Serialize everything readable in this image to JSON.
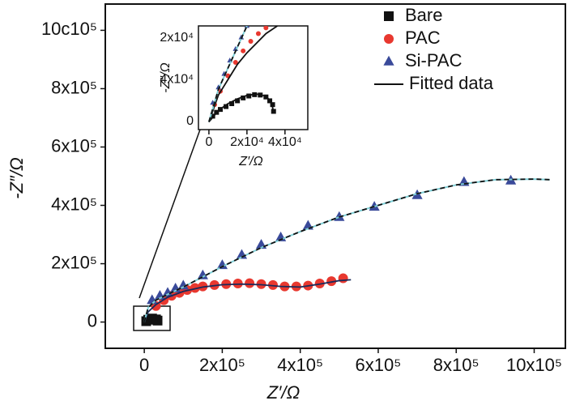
{
  "chart_data": {
    "type": "scatter",
    "xlabel": "Z′/Ω",
    "ylabel": "-Z″/Ω",
    "xlim": [
      -100000,
      1080000
    ],
    "ylim": [
      -90000,
      1090000
    ],
    "xticks": [
      0,
      {
        "value": 200000,
        "label": "2x10⁵"
      },
      {
        "value": 400000,
        "label": "4x10⁵"
      },
      {
        "value": 600000,
        "label": "6x10⁵"
      },
      {
        "value": 800000,
        "label": "8x10⁵"
      },
      {
        "value": 1000000,
        "label": "10x10⁵"
      }
    ],
    "yticks": [
      0,
      {
        "value": 200000,
        "label": "2x10⁵"
      },
      {
        "value": 400000,
        "label": "4x10⁵"
      },
      {
        "value": 600000,
        "label": "6x10⁵"
      },
      {
        "value": 800000,
        "label": "8x10⁵"
      },
      {
        "value": 1000000,
        "label": "10c10⁵"
      }
    ],
    "legend": "upper right",
    "fit_legend": "Fitted data",
    "series": [
      {
        "name": "Bare",
        "color": "#111111",
        "marker": "square",
        "x": [
          5000,
          10000,
          20000,
          30000,
          34000
        ],
        "values": [
          3000,
          8000,
          12000,
          9000,
          5000
        ]
      },
      {
        "name": "PAC",
        "color": "#e8382f",
        "marker": "circle",
        "x": [
          30000,
          50000,
          70000,
          90000,
          110000,
          130000,
          150000,
          180000,
          210000,
          240000,
          270000,
          300000,
          330000,
          360000,
          390000,
          420000,
          450000,
          480000,
          510000
        ],
        "values": [
          55000,
          75000,
          90000,
          100000,
          110000,
          117000,
          122000,
          127000,
          130000,
          132000,
          133000,
          130000,
          127000,
          122000,
          122000,
          125000,
          132000,
          140000,
          150000
        ]
      },
      {
        "name": "Si-PAC",
        "color": "#3a4a9a",
        "marker": "triangle",
        "x": [
          20000,
          40000,
          60000,
          80000,
          100000,
          150000,
          200000,
          250000,
          300000,
          350000,
          420000,
          500000,
          590000,
          700000,
          820000,
          940000
        ],
        "values": [
          75000,
          90000,
          100000,
          115000,
          125000,
          160000,
          195000,
          230000,
          265000,
          290000,
          330000,
          360000,
          395000,
          435000,
          480000,
          485000
        ]
      }
    ],
    "fits": [
      {
        "color": "#111111",
        "dash": false,
        "x": [
          0,
          10000,
          20000,
          30000,
          34000
        ],
        "values": [
          0,
          10000,
          12000,
          8000,
          0
        ]
      },
      {
        "color": "#1a2a5a",
        "dash": false,
        "x": [
          0,
          10000,
          30000,
          60000,
          100000,
          150000,
          200000,
          250000,
          300000,
          350000,
          400000,
          450000,
          500000,
          530000
        ],
        "values": [
          0,
          35000,
          60000,
          85000,
          105000,
          120000,
          128000,
          130000,
          128000,
          122000,
          120000,
          130000,
          142000,
          145000
        ]
      },
      {
        "color": "#111111",
        "dash": true,
        "x": [
          0,
          10000,
          30000,
          60000,
          100000,
          150000,
          200000,
          300000,
          400000,
          500000,
          600000,
          700000,
          800000,
          900000,
          1000000,
          1040000
        ],
        "values": [
          0,
          50000,
          75000,
          95000,
          120000,
          155000,
          190000,
          255000,
          310000,
          360000,
          400000,
          440000,
          470000,
          488000,
          490000,
          488000
        ]
      }
    ],
    "inset": {
      "xlabel": "Z′/Ω",
      "ylabel": "-Z″/Ω",
      "xlim": [
        -5500,
        52000
      ],
      "ylim": [
        -4000,
        50000
      ],
      "xticks": [
        0,
        {
          "value": 20000,
          "label": "2x10⁴"
        },
        {
          "value": 40000,
          "label": "4x10⁴"
        }
      ],
      "ytick_labels": [
        "2x10⁴",
        "4x10⁴",
        "0"
      ],
      "series": [
        {
          "color": "#111111",
          "marker": "square",
          "x": [
            2000,
            4000,
            6000,
            9000,
            12000,
            15000,
            18000,
            21000,
            24000,
            27000,
            30000,
            32000,
            33500,
            34000
          ],
          "values": [
            3000,
            5000,
            6500,
            8000,
            9500,
            11000,
            12500,
            13500,
            14200,
            14000,
            13000,
            11000,
            9000,
            5500
          ]
        },
        {
          "color": "#e8382f",
          "marker": "circle",
          "x": [
            3000,
            6000,
            10000,
            14000,
            18000,
            22000,
            26000,
            30000
          ],
          "values": [
            9000,
            16000,
            24000,
            31000,
            37000,
            42000,
            46000,
            49000
          ]
        },
        {
          "color": "#3a4a9a",
          "marker": "triangle",
          "x": [
            2000,
            5000,
            8000,
            11000,
            14000,
            17000,
            20000
          ],
          "values": [
            10000,
            18000,
            25000,
            32000,
            38000,
            44000,
            50000
          ]
        }
      ],
      "fits": [
        {
          "color": "#111111",
          "dash": false,
          "x": [
            0,
            5000,
            10000,
            15000,
            20000,
            25000,
            30000,
            33000,
            34000
          ],
          "values": [
            0,
            6000,
            9500,
            12000,
            13800,
            14500,
            13500,
            10000,
            5000
          ]
        },
        {
          "color": "#111111",
          "dash": false,
          "x": [
            0,
            5000,
            10000,
            15000,
            20000,
            25000,
            30000,
            36000
          ],
          "values": [
            0,
            14000,
            22000,
            30000,
            36000,
            41000,
            46000,
            50000
          ]
        },
        {
          "color": "#111111",
          "dash": true,
          "x": [
            0,
            5000,
            10000,
            15000,
            20000
          ],
          "values": [
            0,
            17000,
            28000,
            39000,
            50000
          ]
        }
      ]
    }
  }
}
